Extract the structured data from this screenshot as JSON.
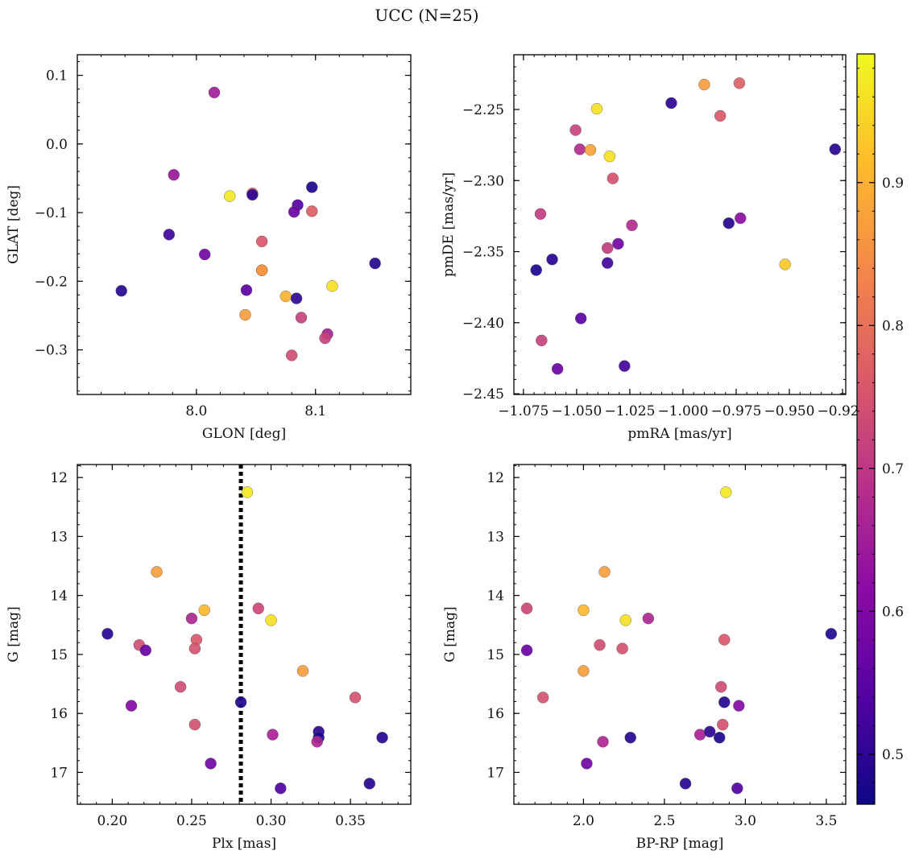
{
  "figure": {
    "title": "UCC (N=25)"
  },
  "colorbar": {
    "range": [
      0.465,
      0.99
    ],
    "ticks": [
      0.5,
      0.6,
      0.7,
      0.8,
      0.9
    ],
    "tick_labels": [
      "0.5",
      "0.6",
      "0.7",
      "0.8",
      "0.9"
    ],
    "colormap": "plasma"
  },
  "chart_data": [
    {
      "type": "scatter",
      "xlabel": "GLON [deg]",
      "ylabel": "GLAT [deg]",
      "xlim": [
        7.9,
        8.18
      ],
      "ylim": [
        -0.365,
        0.13
      ],
      "xticks": [
        8.0,
        8.1
      ],
      "xtick_labels": [
        "8.0",
        "8.1"
      ],
      "yticks": [
        0.1,
        0.0,
        -0.1,
        -0.2,
        -0.3
      ],
      "ytick_labels": [
        "0.1",
        "0.0",
        "−0.1",
        "−0.2",
        "−0.3"
      ],
      "x": [
        8.015,
        7.981,
        8.028,
        8.047,
        8.047,
        8.097,
        8.085,
        8.082,
        8.097,
        7.977,
        8.007,
        8.055,
        8.055,
        8.15,
        7.937,
        8.042,
        8.114,
        8.075,
        8.084,
        8.041,
        8.088,
        8.11,
        8.108,
        8.08,
        8.055
      ],
      "y": [
        0.075,
        -0.045,
        -0.076,
        -0.072,
        -0.074,
        -0.063,
        -0.089,
        -0.099,
        -0.098,
        -0.132,
        -0.161,
        -0.142,
        -0.184,
        -0.174,
        -0.214,
        -0.213,
        -0.207,
        -0.222,
        -0.225,
        -0.249,
        -0.253,
        -0.277,
        -0.283,
        -0.308,
        -0.184
      ],
      "c": [
        0.65,
        0.64,
        0.97,
        0.78,
        0.5,
        0.48,
        0.54,
        0.57,
        0.77,
        0.52,
        0.58,
        0.76,
        0.86,
        0.49,
        0.49,
        0.55,
        0.96,
        0.9,
        0.5,
        0.87,
        0.72,
        0.66,
        0.72,
        0.74,
        0.86
      ]
    },
    {
      "type": "scatter",
      "xlabel": "pmRA [mas/yr]",
      "ylabel": "pmDE [mas/yr]",
      "xlim": [
        -1.0795,
        -0.9235
      ],
      "ylim": [
        -2.4505,
        -2.2115
      ],
      "xticks": [
        -1.075,
        -1.05,
        -1.025,
        -1.0,
        -0.975,
        -0.95,
        -0.925
      ],
      "xtick_labels": [
        "−1.075",
        "−1.050",
        "−1.025",
        "−1.000",
        "−0.975",
        "−0.950",
        "−0.925"
      ],
      "yticks": [
        -2.25,
        -2.3,
        -2.35,
        -2.4,
        -2.45
      ],
      "ytick_labels": [
        "−2.25",
        "−2.30",
        "−2.35",
        "−2.40",
        "−2.45"
      ],
      "x": [
        -0.99,
        -0.9735,
        -1.0405,
        -1.0055,
        -0.9825,
        -1.0505,
        -1.0485,
        -1.0435,
        -1.0345,
        -1.033,
        -0.9285,
        -1.0305,
        -1.067,
        -1.024,
        -0.9785,
        -0.973,
        -1.0355,
        -1.0615,
        -1.0355,
        -1.069,
        -0.952,
        -1.048,
        -1.0665,
        -1.059,
        -1.0275
      ],
      "y": [
        -2.2325,
        -2.2315,
        -2.2495,
        -2.2455,
        -2.2545,
        -2.2645,
        -2.278,
        -2.2785,
        -2.283,
        -2.2985,
        -2.278,
        -2.3445,
        -2.3235,
        -2.3315,
        -2.33,
        -2.3265,
        -2.358,
        -2.3555,
        -2.3475,
        -2.363,
        -2.359,
        -2.397,
        -2.4125,
        -2.4325,
        -2.4305
      ],
      "c": [
        0.87,
        0.77,
        0.96,
        0.5,
        0.76,
        0.72,
        0.68,
        0.88,
        0.96,
        0.75,
        0.49,
        0.58,
        0.71,
        0.68,
        0.49,
        0.62,
        0.52,
        0.49,
        0.71,
        0.48,
        0.93,
        0.55,
        0.72,
        0.57,
        0.52
      ]
    },
    {
      "type": "scatter",
      "xlabel": "Plx [mas]",
      "ylabel": "G [mag]",
      "xlim": [
        0.178,
        0.388
      ],
      "ylim": [
        17.54,
        11.78
      ],
      "xticks": [
        0.2,
        0.25,
        0.3,
        0.35
      ],
      "xtick_labels": [
        "0.20",
        "0.25",
        "0.30",
        "0.35"
      ],
      "yticks": [
        12,
        13,
        14,
        15,
        16,
        17
      ],
      "ytick_labels": [
        "12",
        "13",
        "14",
        "15",
        "16",
        "17"
      ],
      "vline": 0.281,
      "x": [
        0.285,
        0.228,
        0.258,
        0.292,
        0.3,
        0.25,
        0.197,
        0.217,
        0.221,
        0.253,
        0.252,
        0.32,
        0.243,
        0.353,
        0.212,
        0.281,
        0.252,
        0.301,
        0.33,
        0.33,
        0.37,
        0.329,
        0.262,
        0.362,
        0.306
      ],
      "y": [
        12.25,
        13.6,
        14.25,
        14.22,
        14.42,
        14.39,
        14.65,
        14.84,
        14.93,
        14.75,
        14.9,
        15.28,
        15.55,
        15.73,
        15.87,
        15.81,
        16.19,
        16.36,
        16.31,
        16.41,
        16.41,
        16.48,
        16.85,
        17.19,
        17.27
      ],
      "c": [
        0.97,
        0.87,
        0.91,
        0.73,
        0.96,
        0.67,
        0.49,
        0.74,
        0.57,
        0.76,
        0.75,
        0.87,
        0.74,
        0.75,
        0.61,
        0.49,
        0.75,
        0.66,
        0.5,
        0.48,
        0.49,
        0.67,
        0.58,
        0.49,
        0.54
      ]
    },
    {
      "type": "scatter",
      "xlabel": "BP-RP [mag]",
      "ylabel": "G [mag]",
      "xlim": [
        1.57,
        3.62
      ],
      "ylim": [
        17.54,
        11.78
      ],
      "xticks": [
        2.0,
        2.5,
        3.0,
        3.5
      ],
      "xtick_labels": [
        "2.0",
        "2.5",
        "3.0",
        "3.5"
      ],
      "yticks": [
        12,
        13,
        14,
        15,
        16,
        17
      ],
      "ytick_labels": [
        "12",
        "13",
        "14",
        "15",
        "16",
        "17"
      ],
      "x": [
        2.88,
        2.13,
        2.0,
        2.26,
        1.65,
        2.4,
        3.53,
        2.1,
        1.65,
        2.87,
        2.24,
        2.0,
        1.75,
        2.85,
        2.87,
        2.96,
        2.72,
        2.78,
        2.84,
        2.12,
        2.29,
        2.02,
        2.63,
        2.95,
        2.86
      ],
      "y": [
        12.25,
        13.6,
        14.25,
        14.42,
        14.22,
        14.39,
        14.65,
        14.84,
        14.93,
        14.75,
        14.9,
        15.28,
        15.73,
        15.55,
        15.81,
        15.87,
        16.36,
        16.31,
        16.41,
        16.48,
        16.41,
        16.85,
        17.19,
        17.27,
        16.19
      ],
      "c": [
        0.97,
        0.87,
        0.91,
        0.96,
        0.73,
        0.67,
        0.49,
        0.74,
        0.57,
        0.76,
        0.75,
        0.87,
        0.75,
        0.74,
        0.49,
        0.61,
        0.66,
        0.5,
        0.48,
        0.67,
        0.49,
        0.58,
        0.49,
        0.54,
        0.75
      ]
    }
  ]
}
